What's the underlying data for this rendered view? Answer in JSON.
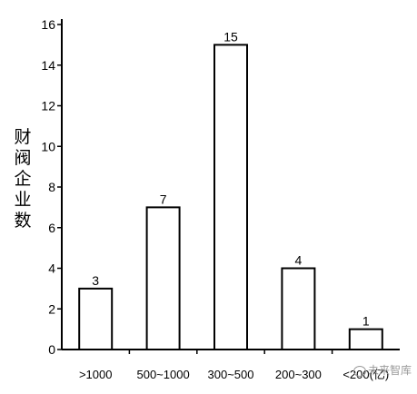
{
  "chart_data": {
    "type": "bar",
    "ylabel": "财阀企业数",
    "xlabel": "",
    "categories": [
      ">1000",
      "500~1000",
      "300~500",
      "200~300",
      "<200(亿)"
    ],
    "values": [
      3,
      7,
      15,
      4,
      1
    ],
    "ylim": [
      0,
      16
    ],
    "yticks": [
      0,
      2,
      4,
      6,
      8,
      10,
      12,
      14,
      16
    ],
    "ytick_labels": [
      "0",
      "2",
      "4",
      "6",
      "8",
      "10",
      "12",
      "14",
      "16"
    ],
    "grid": false,
    "bar_fill": "#ffffff",
    "bar_stroke": "#000000"
  },
  "watermark": "未来智库"
}
